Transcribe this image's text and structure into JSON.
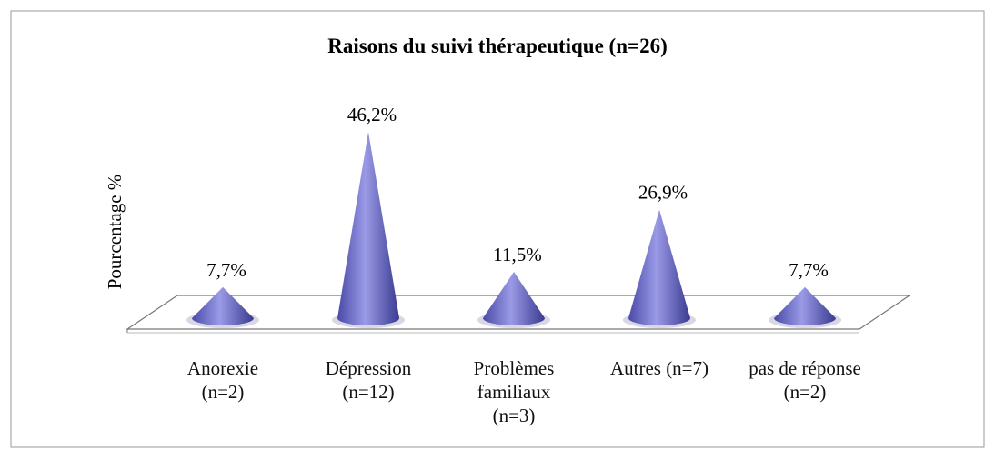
{
  "chart_data": {
    "type": "cone",
    "title": "Raisons du suivi thérapeutique (n=26)",
    "y_label": "Pourcentage %",
    "categories": [
      "Anorexie\n(n=2)",
      "Dépression\n(n=12)",
      "Problèmes\nfamiliaux\n(n=3)",
      "Autres (n=7)",
      "pas de réponse\n(n=2)"
    ],
    "values": [
      7.7,
      46.2,
      11.5,
      26.9,
      7.7
    ],
    "value_labels": [
      "7,7%",
      "46,2%",
      "11,5%",
      "26,9%",
      "7,7%"
    ],
    "color": "#6b6bc8"
  }
}
